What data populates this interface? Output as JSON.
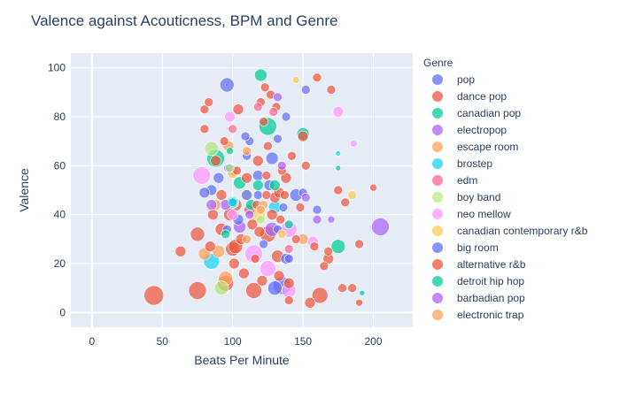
{
  "chart_data": {
    "type": "scatter",
    "title": "Valence against Acouticness, BPM and Genre",
    "xlabel": "Beats Per Minute",
    "ylabel": "Valence",
    "xlim": [
      -15,
      228
    ],
    "ylim": [
      -6,
      106
    ],
    "xticks": [
      0,
      50,
      100,
      150,
      200
    ],
    "yticks": [
      0,
      20,
      40,
      60,
      80,
      100
    ],
    "grid": true,
    "legend_title": "Genre",
    "legend_position": "right",
    "series": [
      {
        "name": "pop",
        "color": "#636efa",
        "points": [
          [
            96,
            93,
            8
          ],
          [
            104,
            38,
            6
          ],
          [
            128,
            63,
            7
          ],
          [
            145,
            48,
            7
          ],
          [
            118,
            56,
            6
          ],
          [
            132,
            34,
            5
          ],
          [
            90,
            55,
            6
          ],
          [
            112,
            70,
            5
          ],
          [
            152,
            91,
            5
          ],
          [
            138,
            80,
            5
          ],
          [
            97,
            59,
            5
          ],
          [
            85,
            50,
            6
          ],
          [
            109,
            72,
            5
          ],
          [
            132,
            71,
            5
          ],
          [
            126,
            52,
            6
          ],
          [
            122,
            28,
            5
          ],
          [
            100,
            45,
            6
          ],
          [
            130,
            10,
            8
          ],
          [
            118,
            48,
            5
          ],
          [
            96,
            34,
            5
          ],
          [
            140,
            22,
            5
          ],
          [
            136,
            43,
            5
          ],
          [
            150,
            49,
            5
          ],
          [
            110,
            64,
            5
          ]
        ]
      },
      {
        "name": "dance pop",
        "color": "#EF553B",
        "points": [
          [
            44,
            7,
            11
          ],
          [
            63,
            25,
            6
          ],
          [
            75,
            32,
            8
          ],
          [
            80,
            83,
            5
          ],
          [
            83,
            86,
            5
          ],
          [
            75,
            9,
            10
          ],
          [
            95,
            12,
            9
          ],
          [
            100,
            26,
            8
          ],
          [
            102,
            44,
            7
          ],
          [
            104,
            83,
            6
          ],
          [
            110,
            55,
            6
          ],
          [
            115,
            9,
            9
          ],
          [
            118,
            62,
            6
          ],
          [
            120,
            86,
            5
          ],
          [
            122,
            78,
            5
          ],
          [
            125,
            68,
            5
          ],
          [
            125,
            32,
            9
          ],
          [
            128,
            40,
            6
          ],
          [
            130,
            47,
            6
          ],
          [
            132,
            23,
            7
          ],
          [
            133,
            15,
            6
          ],
          [
            135,
            58,
            5
          ],
          [
            138,
            55,
            6
          ],
          [
            140,
            12,
            6
          ],
          [
            145,
            30,
            5
          ],
          [
            148,
            43,
            5
          ],
          [
            150,
            72,
            6
          ],
          [
            152,
            60,
            5
          ],
          [
            155,
            4,
            6
          ],
          [
            158,
            27,
            5
          ],
          [
            160,
            96,
            5
          ],
          [
            162,
            7,
            9
          ],
          [
            165,
            19,
            5
          ],
          [
            168,
            25,
            5
          ],
          [
            170,
            91,
            5
          ],
          [
            175,
            50,
            5
          ],
          [
            180,
            45,
            5
          ],
          [
            185,
            10,
            5
          ],
          [
            190,
            28,
            5
          ],
          [
            200,
            51,
            4
          ],
          [
            88,
            62,
            6
          ],
          [
            92,
            48,
            6
          ],
          [
            94,
            70,
            5
          ],
          [
            98,
            40,
            7
          ],
          [
            106,
            30,
            6
          ],
          [
            108,
            16,
            6
          ],
          [
            112,
            42,
            6
          ],
          [
            114,
            36,
            6
          ],
          [
            116,
            22,
            5
          ],
          [
            121,
            13,
            6
          ],
          [
            123,
            92,
            5
          ],
          [
            127,
            89,
            5
          ],
          [
            131,
            84,
            5
          ],
          [
            134,
            38,
            5
          ],
          [
            142,
            64,
            5
          ],
          [
            86,
            40,
            6
          ],
          [
            84,
            27,
            6
          ],
          [
            80,
            75,
            5
          ],
          [
            92,
            34,
            7
          ],
          [
            101,
            20,
            6
          ],
          [
            103,
            58,
            5
          ],
          [
            117,
            44,
            5
          ],
          [
            119,
            33,
            6
          ],
          [
            124,
            56,
            5
          ],
          [
            133,
            49,
            6
          ],
          [
            137,
            48,
            5
          ]
        ]
      },
      {
        "name": "canadian pop",
        "color": "#00cc96",
        "points": [
          [
            120,
            97,
            7
          ],
          [
            125,
            76,
            10
          ],
          [
            88,
            63,
            10
          ],
          [
            105,
            53,
            7
          ],
          [
            113,
            44,
            6
          ],
          [
            100,
            45,
            6
          ],
          [
            175,
            27,
            8
          ],
          [
            150,
            73,
            7
          ],
          [
            118,
            52,
            6
          ],
          [
            95,
            32,
            5
          ],
          [
            130,
            52,
            6
          ],
          [
            140,
            36,
            5
          ]
        ]
      },
      {
        "name": "electropop",
        "color": "#ab63fa",
        "points": [
          [
            205,
            35,
            10
          ],
          [
            128,
            34,
            8
          ],
          [
            152,
            47,
            5
          ],
          [
            100,
            58,
            6
          ],
          [
            112,
            40,
            5
          ],
          [
            132,
            88,
            5
          ],
          [
            95,
            44,
            6
          ],
          [
            170,
            38,
            4
          ]
        ]
      },
      {
        "name": "escape room",
        "color": "#FFA15A",
        "points": [
          [
            97,
            68,
            6
          ],
          [
            88,
            44,
            6
          ],
          [
            95,
            14,
            8
          ],
          [
            80,
            24,
            7
          ],
          [
            110,
            30,
            5
          ],
          [
            122,
            44,
            5
          ]
        ]
      },
      {
        "name": "brostep",
        "color": "#19d3f3",
        "points": [
          [
            85,
            21,
            9
          ],
          [
            130,
            43,
            7
          ],
          [
            100,
            45,
            5
          ],
          [
            175,
            65,
            3
          ]
        ]
      },
      {
        "name": "edm",
        "color": "#FF6692",
        "points": [
          [
            118,
            84,
            5
          ],
          [
            129,
            82,
            5
          ],
          [
            100,
            75,
            5
          ],
          [
            140,
            26,
            5
          ]
        ]
      },
      {
        "name": "boy band",
        "color": "#B6E880",
        "points": [
          [
            92,
            10,
            8
          ],
          [
            85,
            67,
            8
          ],
          [
            110,
            48,
            6
          ],
          [
            98,
            59,
            5
          ],
          [
            120,
            38,
            5
          ]
        ]
      },
      {
        "name": "neo mellow",
        "color": "#FF97FF",
        "points": [
          [
            78,
            56,
            10
          ],
          [
            115,
            24,
            10
          ],
          [
            140,
            34,
            9
          ],
          [
            125,
            18,
            9
          ],
          [
            98,
            80,
            6
          ],
          [
            157,
            29,
            6
          ],
          [
            175,
            82,
            6
          ],
          [
            140,
            9,
            8
          ],
          [
            100,
            40,
            6
          ],
          [
            186,
            69,
            4
          ]
        ]
      },
      {
        "name": "canadian contemporary r&b",
        "color": "#FECB52",
        "points": [
          [
            118,
            40,
            8
          ],
          [
            185,
            48,
            5
          ],
          [
            100,
            57,
            6
          ],
          [
            145,
            95,
            4
          ],
          [
            135,
            32,
            5
          ]
        ]
      },
      {
        "name": "big room",
        "color": "#636efa",
        "points": [
          [
            135,
            11,
            10
          ],
          [
            110,
            48,
            6
          ],
          [
            80,
            49,
            6
          ],
          [
            160,
            42,
            5
          ],
          [
            138,
            22,
            6
          ]
        ]
      },
      {
        "name": "alternative r&b",
        "color": "#EF553B",
        "points": [
          [
            178,
            10,
            5
          ],
          [
            190,
            4,
            4
          ],
          [
            102,
            27,
            8
          ],
          [
            140,
            5,
            5
          ],
          [
            168,
            22,
            6
          ],
          [
            124,
            48,
            5
          ]
        ]
      },
      {
        "name": "detroit hip hop",
        "color": "#00cc96",
        "points": [
          [
            100,
            45,
            7
          ],
          [
            175,
            59,
            3
          ],
          [
            192,
            8,
            3
          ],
          [
            98,
            66,
            4
          ]
        ]
      },
      {
        "name": "barbadian pop",
        "color": "#ab63fa",
        "points": [
          [
            105,
            35,
            7
          ],
          [
            135,
            60,
            5
          ],
          [
            85,
            44,
            6
          ],
          [
            160,
            38,
            5
          ]
        ]
      },
      {
        "name": "electronic trap",
        "color": "#FFA15A",
        "points": [
          [
            150,
            30,
            6
          ],
          [
            90,
            25,
            7
          ],
          [
            120,
            42,
            5
          ],
          [
            110,
            66,
            5
          ]
        ]
      }
    ]
  }
}
